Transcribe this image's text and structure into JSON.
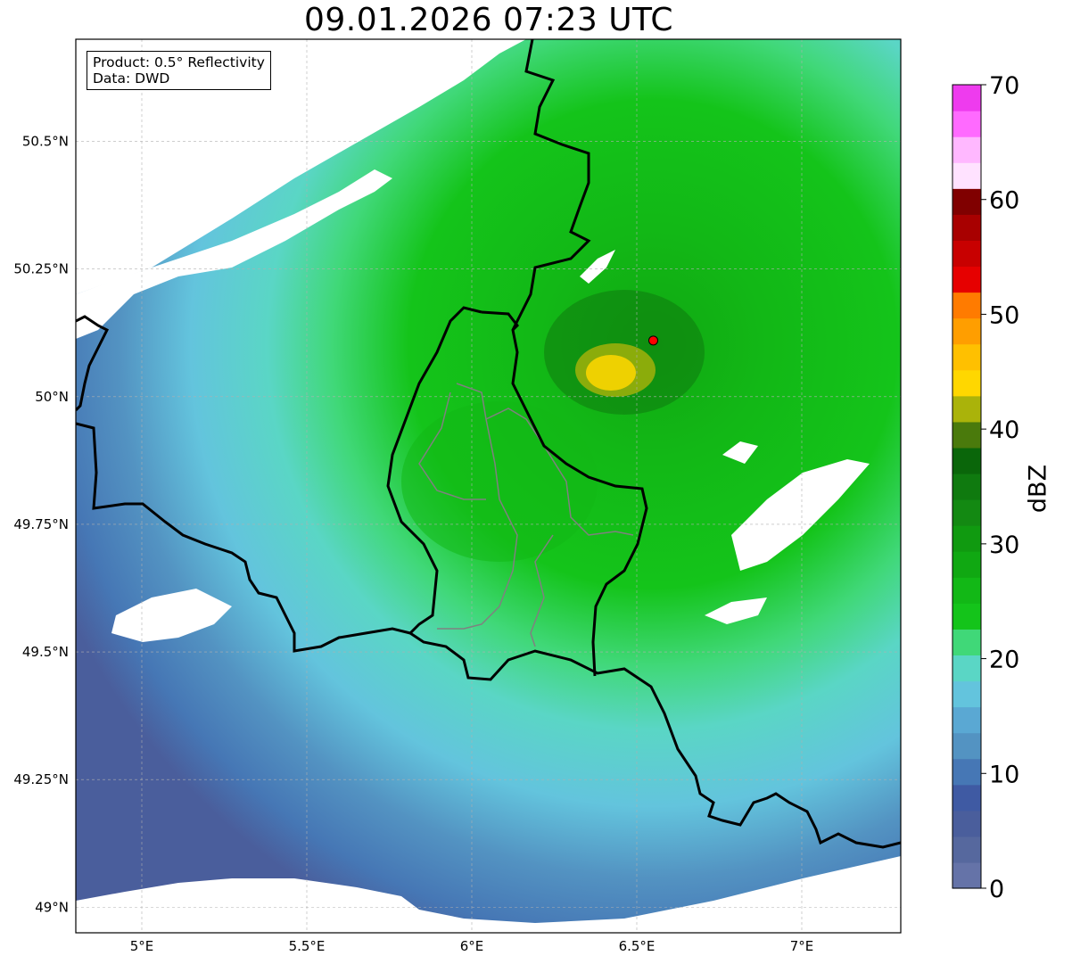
{
  "title": "09.01.2026 07:23 UTC",
  "info": {
    "product": "Product: 0.5° Reflectivity",
    "data": "Data: DWD"
  },
  "map": {
    "lon_range": [
      4.8,
      7.3
    ],
    "lat_range": [
      48.95,
      50.7
    ],
    "lon_ticks": [
      {
        "value": 5.0,
        "label": "5°E"
      },
      {
        "value": 5.5,
        "label": "5.5°E"
      },
      {
        "value": 6.0,
        "label": "6°E"
      },
      {
        "value": 6.5,
        "label": "6.5°E"
      },
      {
        "value": 7.0,
        "label": "7°E"
      }
    ],
    "lat_ticks": [
      {
        "value": 50.5,
        "label": "50.5°N"
      },
      {
        "value": 50.25,
        "label": "50.25°N"
      },
      {
        "value": 50.0,
        "label": "50°N"
      },
      {
        "value": 49.75,
        "label": "49.75°N"
      },
      {
        "value": 49.5,
        "label": "49.5°N"
      },
      {
        "value": 49.25,
        "label": "49.25°N"
      },
      {
        "value": 49.0,
        "label": "49°N"
      }
    ],
    "radar_site": {
      "lon": 6.55,
      "lat": 50.11,
      "color": "#ff0000"
    }
  },
  "colorbar": {
    "unit": "dBZ",
    "min": 0,
    "max": 70,
    "tick_labels": [
      "0",
      "10",
      "20",
      "30",
      "40",
      "50",
      "60",
      "70"
    ],
    "colors": [
      "#6573a8",
      "#56689e",
      "#4a5e9c",
      "#3f5aa3",
      "#4677b5",
      "#5393c2",
      "#5aa8d3",
      "#63c4dd",
      "#5ad6c5",
      "#40d878",
      "#14c41a",
      "#12b816",
      "#10a812",
      "#109a10",
      "#138912",
      "#0f7a0f",
      "#0a660a",
      "#4a7a0c",
      "#aab30a",
      "#ffd700",
      "#ffc000",
      "#ff9e00",
      "#ff7b00",
      "#e60000",
      "#c80000",
      "#a80000",
      "#800000",
      "#ffe2ff",
      "#ffb8ff",
      "#ff6aff",
      "#ee3bee"
    ]
  },
  "colors": {
    "border": "#000000",
    "inner_border": "#808080",
    "grid": "#b0b0b0"
  }
}
